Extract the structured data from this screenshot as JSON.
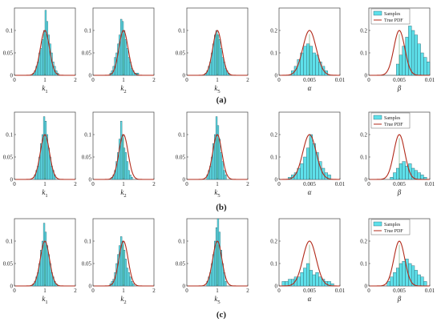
{
  "colors": {
    "bar_fill": "#5ee0ea",
    "bar_stroke": "#2a5a66",
    "pdf_line": "#b22a1a",
    "mu_line": "#2e7d32"
  },
  "legend": {
    "samples": "Samples",
    "pdf": "True PDF"
  },
  "chart_data": {
    "type": "bar",
    "rows": [
      {
        "label": "(a)",
        "panels": [
          {
            "xlabel": "k",
            "xsub": "1",
            "xlim": [
              0,
              2
            ],
            "xticks": [
              "0",
              "1",
              "2"
            ],
            "ylim": [
              0,
              0.15
            ],
            "yticks": [
              "0",
              "0.05",
              "0.1"
            ],
            "pdf": {
              "mean": 1.0,
              "sd": 0.15,
              "peak": 0.1
            },
            "bins": {
              "start": 0.6,
              "width": 0.05,
              "values": [
                0.005,
                0.01,
                0.02,
                0.03,
                0.05,
                0.06,
                0.08,
                0.1,
                0.145,
                0.12,
                0.09,
                0.07,
                0.05,
                0.03,
                0.02,
                0.01,
                0.005
              ]
            }
          },
          {
            "xlabel": "k",
            "xsub": "2",
            "xlim": [
              0,
              2
            ],
            "xticks": [
              "0",
              "1",
              "2"
            ],
            "ylim": [
              0,
              0.15
            ],
            "yticks": [
              "0",
              "0.05",
              "0.1"
            ],
            "pdf": {
              "mean": 1.0,
              "sd": 0.15,
              "peak": 0.1
            },
            "bins": {
              "start": 0.55,
              "width": 0.05,
              "values": [
                0.005,
                0.01,
                0.02,
                0.04,
                0.05,
                0.07,
                0.09,
                0.125,
                0.12,
                0.1,
                0.08,
                0.06,
                0.04,
                0.03,
                0.015,
                0.01,
                0.005,
                0.005,
                0.005
              ]
            }
          },
          {
            "xlabel": "k",
            "xsub": "5",
            "xlim": [
              0,
              2
            ],
            "xticks": [
              "0",
              "1",
              "2"
            ],
            "ylim": [
              0,
              0.15
            ],
            "yticks": [
              "0",
              "0.05",
              "0.1"
            ],
            "pdf": {
              "mean": 1.0,
              "sd": 0.15,
              "peak": 0.1
            },
            "bins": {
              "start": 0.6,
              "width": 0.05,
              "values": [
                0.005,
                0.01,
                0.02,
                0.03,
                0.05,
                0.07,
                0.09,
                0.1,
                0.09,
                0.08,
                0.06,
                0.04,
                0.03,
                0.015,
                0.01,
                0.005
              ]
            }
          },
          {
            "xlabel": "α",
            "xsub": "",
            "xlim": [
              0,
              0.01
            ],
            "xticks": [
              "0",
              "0.005",
              "0.01"
            ],
            "ylim": [
              0,
              0.3
            ],
            "yticks": [
              "0",
              "0.1",
              "0.2"
            ],
            "pdf": {
              "mean": 0.005,
              "sd": 0.0011,
              "peak": 0.2
            },
            "bins": {
              "start": 0.002,
              "width": 0.0005,
              "values": [
                0.02,
                0.04,
                0.07,
                0.1,
                0.13,
                0.14,
                0.13,
                0.1,
                0.09,
                0.06,
                0.04,
                0.02
              ]
            }
          },
          {
            "xlabel": "β",
            "xsub": "",
            "xlim": [
              0,
              0.01
            ],
            "xticks": [
              "0",
              "0.005",
              "0.01"
            ],
            "ylim": [
              0,
              0.3
            ],
            "yticks": [
              "0",
              "0.1",
              "0.2"
            ],
            "pdf": {
              "mean": 0.005,
              "sd": 0.0009,
              "peak": 0.2
            },
            "bins": {
              "start": 0.0045,
              "width": 0.0005,
              "values": [
                0.05,
                0.09,
                0.13,
                0.17,
                0.22,
                0.2,
                0.18,
                0.14,
                0.1,
                0.08,
                0.06
              ]
            }
          }
        ]
      },
      {
        "label": "(b)",
        "panels": [
          {
            "xlabel": "k",
            "xsub": "1",
            "xlim": [
              0,
              2
            ],
            "xticks": [
              "0",
              "1",
              "2"
            ],
            "ylim": [
              0,
              0.15
            ],
            "yticks": [
              "0",
              "0.05",
              "0.1"
            ],
            "pdf": {
              "mean": 1.0,
              "sd": 0.15,
              "peak": 0.1
            },
            "bins": {
              "start": 0.65,
              "width": 0.05,
              "values": [
                0.01,
                0.02,
                0.03,
                0.05,
                0.08,
                0.1,
                0.14,
                0.13,
                0.1,
                0.07,
                0.05,
                0.03,
                0.02,
                0.01
              ]
            }
          },
          {
            "xlabel": "k",
            "xsub": "2",
            "xlim": [
              0,
              2
            ],
            "xticks": [
              "0",
              "1",
              "2"
            ],
            "ylim": [
              0,
              0.15
            ],
            "yticks": [
              "0",
              "0.05",
              "0.1"
            ],
            "pdf": {
              "mean": 1.0,
              "sd": 0.15,
              "peak": 0.1
            },
            "bins": {
              "start": 0.6,
              "width": 0.05,
              "values": [
                0.005,
                0.01,
                0.02,
                0.04,
                0.06,
                0.09,
                0.13,
                0.1,
                0.07,
                0.06,
                0.04,
                0.02,
                0.01,
                0.005
              ]
            }
          },
          {
            "xlabel": "k",
            "xsub": "5",
            "xlim": [
              0,
              2
            ],
            "xticks": [
              "0",
              "1",
              "2"
            ],
            "ylim": [
              0,
              0.15
            ],
            "yticks": [
              "0",
              "0.05",
              "0.1"
            ],
            "pdf": {
              "mean": 1.0,
              "sd": 0.15,
              "peak": 0.1
            },
            "bins": {
              "start": 0.65,
              "width": 0.05,
              "values": [
                0.01,
                0.02,
                0.03,
                0.05,
                0.08,
                0.1,
                0.14,
                0.12,
                0.09,
                0.06,
                0.04,
                0.02,
                0.01
              ]
            }
          },
          {
            "xlabel": "α",
            "xsub": "",
            "xlim": [
              0,
              0.01
            ],
            "xticks": [
              "0",
              "0.005",
              "0.01"
            ],
            "ylim": [
              0,
              0.3
            ],
            "yticks": [
              "0",
              "0.1",
              "0.2"
            ],
            "pdf": {
              "mean": 0.005,
              "sd": 0.0011,
              "peak": 0.2
            },
            "bins": {
              "start": 0.0015,
              "width": 0.0005,
              "values": [
                0.01,
                0.02,
                0.03,
                0.05,
                0.07,
                0.1,
                0.14,
                0.2,
                0.16,
                0.12,
                0.08,
                0.05,
                0.03,
                0.02
              ]
            }
          },
          {
            "xlabel": "β",
            "xsub": "",
            "xlim": [
              0,
              0.01
            ],
            "xticks": [
              "0",
              "0.005",
              "0.01"
            ],
            "ylim": [
              0,
              0.3
            ],
            "yticks": [
              "0",
              "0.1",
              "0.2"
            ],
            "pdf": {
              "mean": 0.005,
              "sd": 0.0009,
              "peak": 0.2
            },
            "bins": {
              "start": 0.0035,
              "width": 0.0005,
              "values": [
                0.01,
                0.03,
                0.05,
                0.07,
                0.08,
                0.06,
                0.07,
                0.05,
                0.04,
                0.03,
                0.02,
                0.01
              ]
            }
          }
        ]
      },
      {
        "label": "(c)",
        "panels": [
          {
            "xlabel": "k",
            "xsub": "1",
            "xlim": [
              0,
              2
            ],
            "xticks": [
              "0",
              "1",
              "2"
            ],
            "ylim": [
              0,
              0.15
            ],
            "yticks": [
              "0",
              "0.05",
              "0.1"
            ],
            "pdf": {
              "mean": 1.0,
              "sd": 0.15,
              "peak": 0.1
            },
            "bins": {
              "start": 0.6,
              "width": 0.05,
              "values": [
                0.005,
                0.01,
                0.02,
                0.03,
                0.05,
                0.08,
                0.1,
                0.14,
                0.12,
                0.09,
                0.07,
                0.05,
                0.03,
                0.02,
                0.01,
                0.005
              ]
            }
          },
          {
            "xlabel": "k",
            "xsub": "2",
            "xlim": [
              0,
              2
            ],
            "xticks": [
              "0",
              "1",
              "2"
            ],
            "ylim": [
              0,
              0.15
            ],
            "yticks": [
              "0",
              "0.05",
              "0.1"
            ],
            "pdf": {
              "mean": 1.0,
              "sd": 0.15,
              "peak": 0.1
            },
            "bins": {
              "start": 0.55,
              "width": 0.05,
              "values": [
                0.005,
                0.01,
                0.015,
                0.03,
                0.05,
                0.07,
                0.09,
                0.11,
                0.1,
                0.08,
                0.06,
                0.04,
                0.03,
                0.02,
                0.01,
                0.005
              ]
            }
          },
          {
            "xlabel": "k",
            "xsub": "5",
            "xlim": [
              0,
              2
            ],
            "xticks": [
              "0",
              "1",
              "2"
            ],
            "ylim": [
              0,
              0.15
            ],
            "yticks": [
              "0",
              "0.05",
              "0.1"
            ],
            "pdf": {
              "mean": 1.0,
              "sd": 0.15,
              "peak": 0.1
            },
            "bins": {
              "start": 0.65,
              "width": 0.05,
              "values": [
                0.01,
                0.02,
                0.03,
                0.05,
                0.07,
                0.1,
                0.13,
                0.15,
                0.12,
                0.08,
                0.05,
                0.03,
                0.01
              ]
            }
          },
          {
            "xlabel": "α",
            "xsub": "",
            "xlim": [
              0,
              0.01
            ],
            "xticks": [
              "0",
              "0.005",
              "0.01"
            ],
            "ylim": [
              0,
              0.3
            ],
            "yticks": [
              "0",
              "0.1",
              "0.2"
            ],
            "pdf": {
              "mean": 0.005,
              "sd": 0.0011,
              "peak": 0.2
            },
            "bins": {
              "start": 0.0005,
              "width": 0.0005,
              "values": [
                0.02,
                0.02,
                0.03,
                0.03,
                0.04,
                0.04,
                0.06,
                0.08,
                0.1,
                0.07,
                0.05,
                0.06,
                0.04,
                0.03,
                0.02,
                0.02,
                0.01
              ]
            }
          },
          {
            "xlabel": "β",
            "xsub": "",
            "xlim": [
              0,
              0.01
            ],
            "xticks": [
              "0",
              "0.005",
              "0.01"
            ],
            "ylim": [
              0,
              0.3
            ],
            "yticks": [
              "0",
              "0.1",
              "0.2"
            ],
            "pdf": {
              "mean": 0.005,
              "sd": 0.0009,
              "peak": 0.2
            },
            "bins": {
              "start": 0.003,
              "width": 0.0005,
              "values": [
                0.02,
                0.04,
                0.06,
                0.08,
                0.1,
                0.11,
                0.12,
                0.1,
                0.09,
                0.07,
                0.05,
                0.04,
                0.02
              ]
            }
          }
        ]
      }
    ]
  }
}
